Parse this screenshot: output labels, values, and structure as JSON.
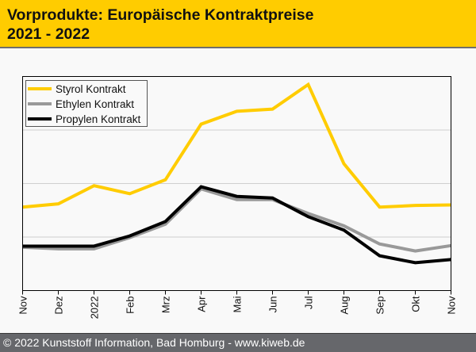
{
  "header": {
    "title": "Vorprodukte: Europäische Kontraktpreise\n2021 - 2022",
    "background": "#ffcc00"
  },
  "footer": {
    "text": "© 2022 Kunststoff Information, Bad Homburg - www.kiweb.de"
  },
  "chart_data": {
    "type": "line",
    "title": "Vorprodukte: Europäische Kontraktpreise 2021 - 2022",
    "xlabel": "",
    "ylabel": "",
    "y_units": "relative (no y-axis labels shown; gridlines at 1, 2, 3)",
    "ylim": [
      0,
      4
    ],
    "grid": true,
    "legend_position": "top-left",
    "categories": [
      "Nov",
      "Dez",
      "2022",
      "Feb",
      "Mrz",
      "Apr",
      "Mai",
      "Jun",
      "Jul",
      "Aug",
      "Sep",
      "Okt",
      "Nov"
    ],
    "series": [
      {
        "name": "Styrol Kontrakt",
        "color": "#ffcc00",
        "values": [
          1.56,
          1.62,
          1.96,
          1.81,
          2.07,
          3.11,
          3.35,
          3.39,
          3.85,
          2.37,
          1.56,
          1.59,
          1.6
        ]
      },
      {
        "name": "Ethylen Kontrakt",
        "color": "#999999",
        "values": [
          0.81,
          0.78,
          0.78,
          0.99,
          1.24,
          1.9,
          1.7,
          1.7,
          1.44,
          1.21,
          0.87,
          0.74,
          0.84
        ]
      },
      {
        "name": "Propylen Kontrakt",
        "color": "#000000",
        "values": [
          0.83,
          0.83,
          0.83,
          1.02,
          1.29,
          1.94,
          1.76,
          1.73,
          1.38,
          1.13,
          0.65,
          0.52,
          0.58
        ]
      }
    ]
  }
}
